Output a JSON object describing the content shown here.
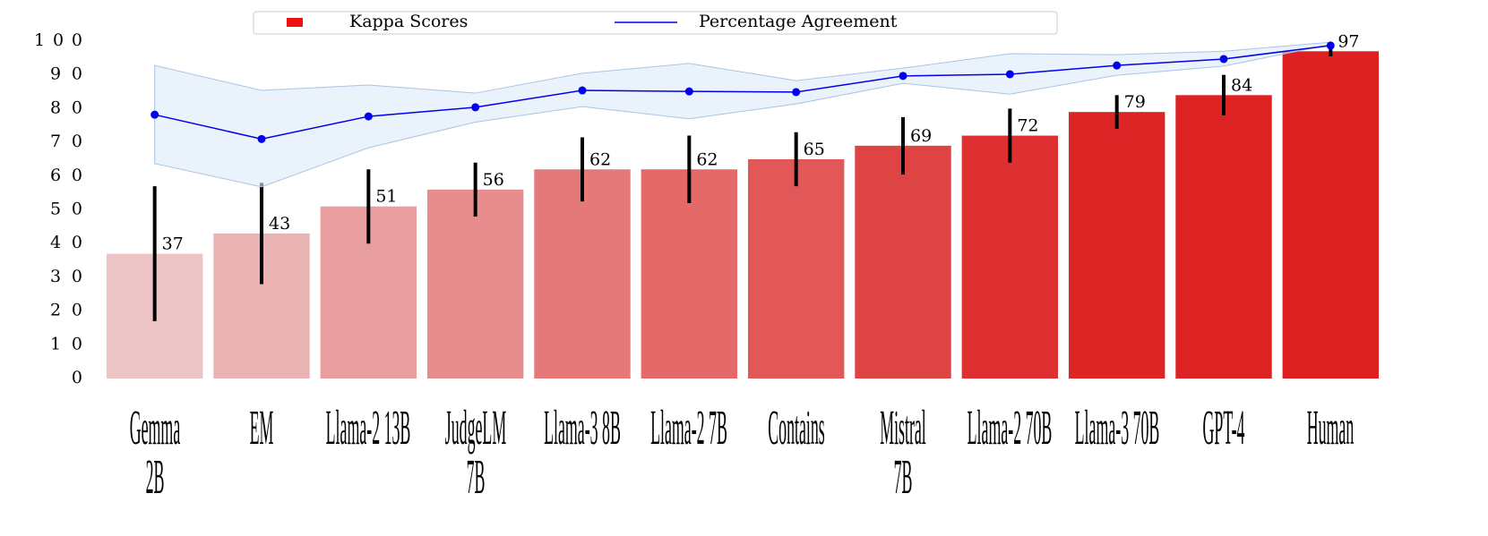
{
  "chart_data": {
    "type": "bar",
    "categories": [
      "Gemma\n2B",
      "EM",
      "Llama-2 13B",
      "JudgeLM\n7B",
      "Llama-3 8B",
      "Llama-2 7B",
      "Contains",
      "Mistral\n7B",
      "Llama-2 70B",
      "Llama-3 70B",
      "GPT-4",
      "Human"
    ],
    "series": [
      {
        "name": "Kappa Scores",
        "type": "bar",
        "color": "#ee1111",
        "values": [
          37,
          43,
          51,
          56,
          62,
          62,
          65,
          69,
          72,
          79,
          84,
          97
        ],
        "errors": [
          20,
          15,
          11,
          8,
          9.5,
          10,
          8,
          8.5,
          8,
          5,
          6,
          1.5
        ],
        "colors": [
          "#ecc4c5",
          "#e9b3b3",
          "#e89e9f",
          "#e88d8d",
          "#e57878",
          "#e46a6a",
          "#e25758",
          "#df4445",
          "#de3031",
          "#dd2526",
          "#dd2224",
          "#dd2022"
        ]
      },
      {
        "name": "Percentage Agreement",
        "type": "line",
        "color": "#0000ee",
        "band_color": "#dce9f8",
        "values": [
          78.2,
          71,
          77.7,
          80.4,
          85.4,
          85.1,
          84.9,
          89.7,
          90.2,
          92.8,
          94.7,
          98.7
        ],
        "upper": [
          92.8,
          85.4,
          87,
          84.6,
          90.5,
          93.4,
          88.3,
          92,
          96.3,
          96,
          97,
          99.7
        ],
        "lower": [
          63.7,
          56.8,
          68.4,
          76,
          80.6,
          77,
          81.4,
          87.5,
          84.3,
          89.9,
          92.6,
          99
        ]
      }
    ],
    "ylim": [
      0,
      100
    ],
    "yticks": [
      0,
      10,
      20,
      30,
      40,
      50,
      60,
      70,
      80,
      90,
      100
    ],
    "legend": "top"
  }
}
